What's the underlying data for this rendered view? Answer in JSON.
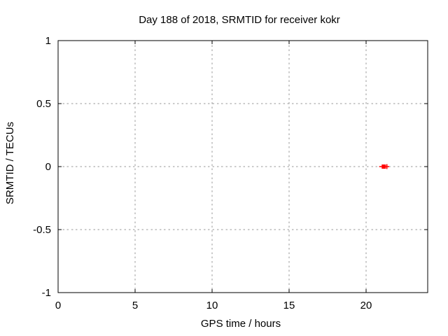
{
  "chart_data": {
    "type": "scatter",
    "title": "Day 188 of 2018, SRMTID for receiver kokr",
    "xlabel": "GPS time / hours",
    "ylabel": "SRMTID / TECUs",
    "xlim": [
      0,
      24
    ],
    "ylim": [
      -1,
      1
    ],
    "xticks": [
      0,
      5,
      10,
      15,
      20
    ],
    "xtick_labels": [
      "0",
      "5",
      "10",
      "15",
      "20"
    ],
    "yticks": [
      -1,
      -0.5,
      0,
      0.5,
      1
    ],
    "ytick_labels": [
      "-1",
      "-0.5",
      "0",
      "0.5",
      "1"
    ],
    "grid": true,
    "legend": "none",
    "series": [
      {
        "name": "SRMTID",
        "marker": "filled-square",
        "color": "#ff0000",
        "points": [
          {
            "x": 21.15,
            "y": 0.0,
            "xerr_min": 20.85,
            "xerr_max": 21.5,
            "cap_x": 21.35
          }
        ]
      }
    ],
    "colors": {
      "grid": "#9a9a9a",
      "axis": "#000000",
      "background": "#ffffff"
    }
  }
}
